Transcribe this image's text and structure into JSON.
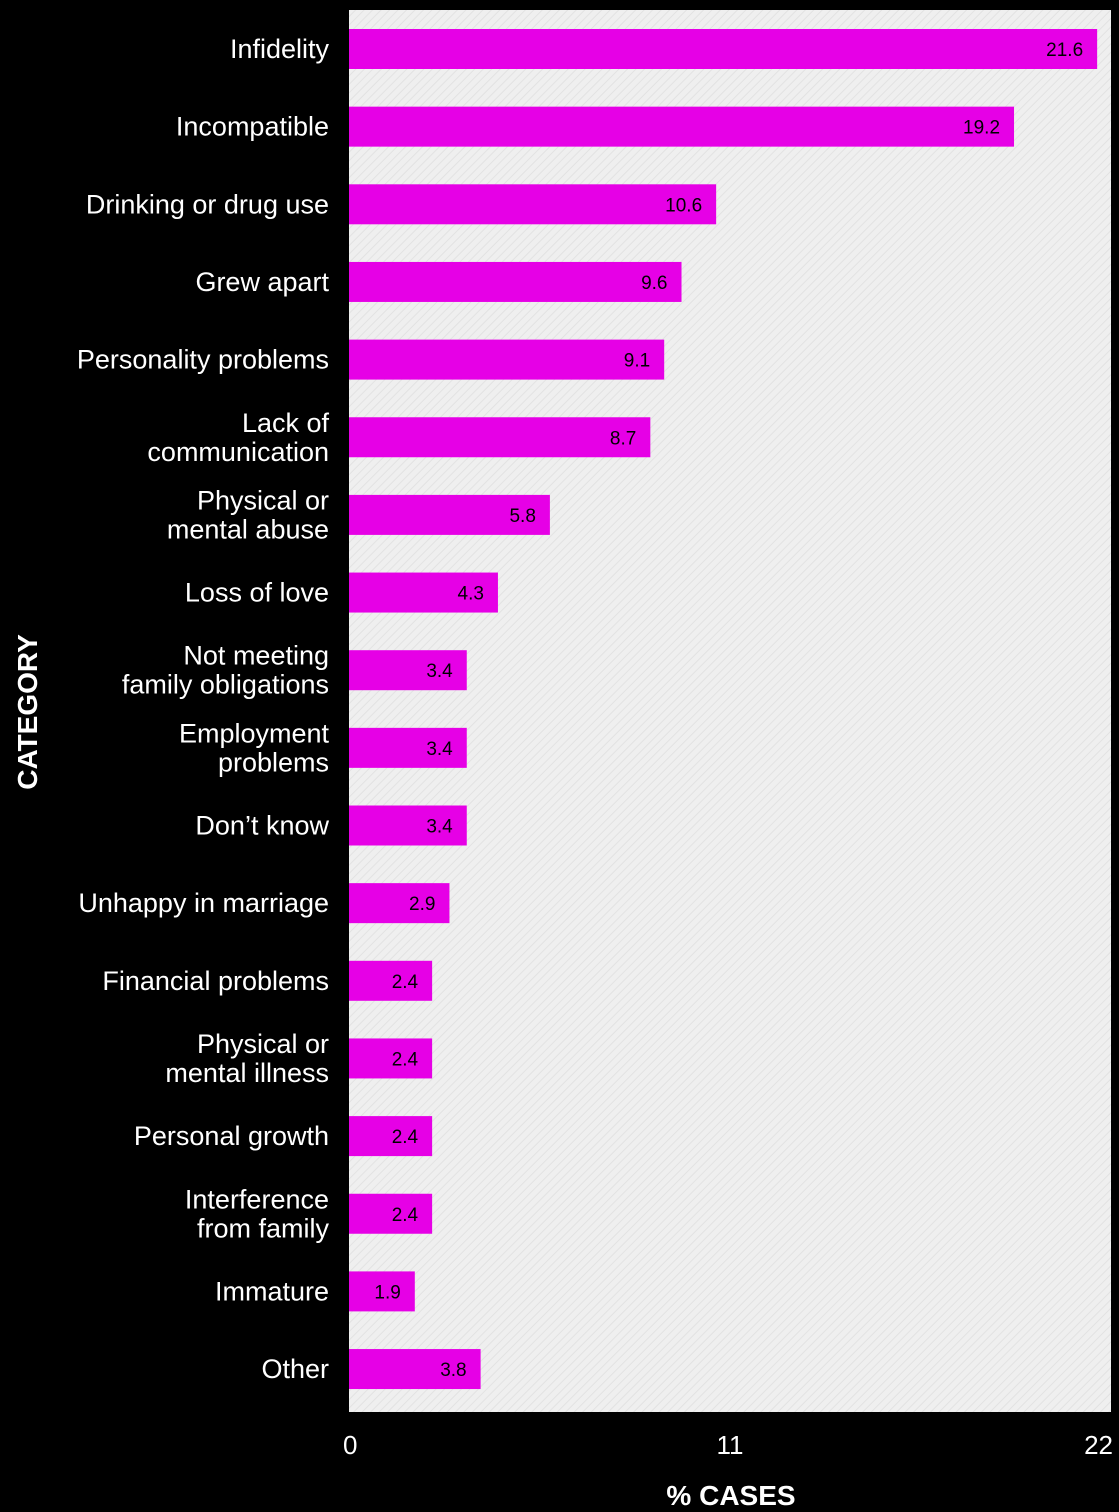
{
  "chart_data": {
    "type": "bar",
    "orientation": "horizontal",
    "categories": [
      [
        "Infidelity"
      ],
      [
        "Incompatible"
      ],
      [
        "Drinking or drug use"
      ],
      [
        "Grew apart"
      ],
      [
        "Personality problems"
      ],
      [
        "Lack of",
        "communication"
      ],
      [
        "Physical or",
        "mental abuse"
      ],
      [
        "Loss of love"
      ],
      [
        "Not meeting",
        "family obligations"
      ],
      [
        "Employment",
        "problems"
      ],
      [
        "Don’t know"
      ],
      [
        "Unhappy in marriage"
      ],
      [
        "Financial problems"
      ],
      [
        "Physical or",
        "mental illness"
      ],
      [
        "Personal growth"
      ],
      [
        "Interference",
        "from family"
      ],
      [
        "Immature"
      ],
      [
        "Other"
      ]
    ],
    "values": [
      21.6,
      19.2,
      10.6,
      9.6,
      9.1,
      8.7,
      5.8,
      4.3,
      3.4,
      3.4,
      3.4,
      2.9,
      2.4,
      2.4,
      2.4,
      2.4,
      1.9,
      3.8
    ],
    "value_labels": [
      "21.6",
      "19.2",
      "10.6",
      "9.6",
      "9.1",
      "8.7",
      "5.8",
      "4.3",
      "3.4",
      "3.4",
      "3.4",
      "2.9",
      "2.4",
      "2.4",
      "2.4",
      "2.4",
      "1.9",
      "3.8"
    ],
    "xlabel": "% CASES",
    "ylabel": "CATEGORY",
    "xlim": [
      0,
      22
    ],
    "xticks": [
      "0",
      "11",
      "22"
    ],
    "colors": {
      "bar": "#e600e6",
      "plot_background": "#f0f0f0",
      "figure_background": "#000000"
    },
    "grid": false,
    "legend": "none"
  }
}
